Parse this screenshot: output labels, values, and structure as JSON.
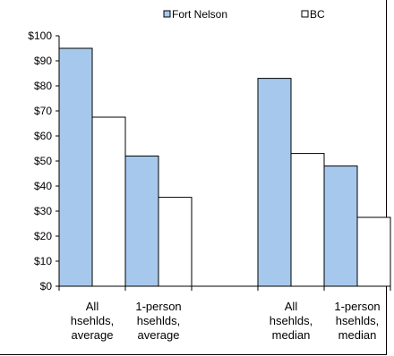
{
  "chart_data": {
    "type": "bar",
    "categories": [
      [
        "All",
        "hsehlds,",
        "average"
      ],
      [
        "1-person",
        "hsehlds,",
        "average"
      ],
      [
        "",
        "",
        ""
      ],
      [
        "All",
        "hsehlds,",
        "median"
      ],
      [
        "1-person",
        "hsehlds,",
        "median"
      ]
    ],
    "series": [
      {
        "name": "Fort Nelson",
        "color": "#a6c8ec",
        "values": [
          95,
          52,
          null,
          83,
          48
        ]
      },
      {
        "name": "BC",
        "color": "#ffffff",
        "values": [
          67.5,
          35.5,
          null,
          53,
          27.5
        ]
      }
    ],
    "ylim": [
      0,
      100
    ],
    "yticks": [
      "$0",
      "$10",
      "$20",
      "$30",
      "$40",
      "$50",
      "$60",
      "$70",
      "$80",
      "$90",
      "$100"
    ],
    "legend_position": "top-right",
    "grid": false
  }
}
